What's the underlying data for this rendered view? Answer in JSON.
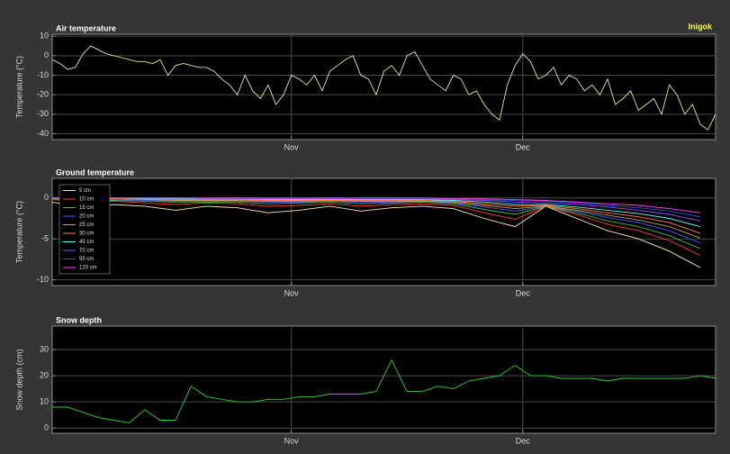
{
  "chart_data": [
    {
      "type": "line",
      "title": "Air temperature",
      "annotation": "Inigok",
      "ylabel": "Temperature (°C)",
      "x": [
        0,
        1,
        2,
        3,
        4,
        5,
        6,
        7,
        8,
        9,
        10,
        11,
        12,
        13,
        14,
        15,
        16,
        17,
        18,
        19,
        20,
        21,
        22,
        23,
        24,
        25,
        26,
        27,
        28,
        29,
        30,
        31,
        32,
        33,
        34,
        35,
        36,
        37,
        38,
        39,
        40,
        41,
        42,
        43,
        44,
        45,
        46,
        47,
        48,
        49,
        50,
        51,
        52,
        53,
        54,
        55,
        56,
        57,
        58,
        59,
        60,
        61,
        62,
        63,
        64,
        65,
        66,
        67,
        68,
        69,
        70,
        71,
        72,
        73,
        74,
        75,
        76,
        77,
        78,
        79,
        80,
        81,
        82,
        83,
        84,
        85,
        86
      ],
      "series": [
        {
          "color": "#e8e890",
          "values": [
            -2,
            -4,
            -7,
            -6,
            1,
            5,
            3,
            1,
            0,
            -1,
            -2,
            -3,
            -3,
            -4,
            -2,
            -10,
            -5,
            -4,
            -5,
            -6,
            -6,
            -8,
            -12,
            -15,
            -20,
            -10,
            -18,
            -22,
            -15,
            -25,
            -20,
            -10,
            -12,
            -15,
            -10,
            -18,
            -8,
            -5,
            -2,
            0,
            -10,
            -12,
            -20,
            -8,
            -5,
            -10,
            0,
            2,
            -5,
            -12,
            -15,
            -18,
            -10,
            -12,
            -20,
            -18,
            -25,
            -30,
            -33,
            -15,
            -5,
            1,
            -3,
            -12,
            -10,
            -6,
            -15,
            -10,
            -12,
            -18,
            -15,
            -20,
            -12,
            -25,
            -22,
            -18,
            -28,
            -25,
            -22,
            -30,
            -15,
            -20,
            -30,
            -25,
            -35,
            -38,
            -30
          ]
        }
      ],
      "xlim": [
        0,
        86
      ],
      "xticks": [
        {
          "value": 31,
          "label": "Nov"
        },
        {
          "value": 61,
          "label": "Dec"
        }
      ],
      "ylim": [
        -43,
        11
      ],
      "yticks": [
        -40,
        -30,
        -20,
        -10,
        0,
        10
      ],
      "grid": true
    },
    {
      "type": "line",
      "title": "Ground temperature",
      "ylabel": "Temperature (°C)",
      "legend": "upper left",
      "x": [
        0,
        4,
        8,
        12,
        16,
        20,
        24,
        28,
        32,
        36,
        40,
        44,
        48,
        52,
        56,
        60,
        64,
        68,
        72,
        76,
        80,
        84
      ],
      "series": [
        {
          "name": "5 cm",
          "color": "#ffe8b8",
          "values": [
            -0.5,
            -1.2,
            -0.8,
            -1,
            -1.5,
            -1,
            -1.2,
            -1.8,
            -1.5,
            -1,
            -1.6,
            -1.2,
            -1,
            -1.3,
            -2.5,
            -3.5,
            -1,
            -2.5,
            -4,
            -5,
            -6.5,
            -8.5
          ]
        },
        {
          "name": "10 cm",
          "color": "#ff4040",
          "values": [
            -0.2,
            -0.5,
            -0.4,
            -0.6,
            -0.8,
            -0.6,
            -0.7,
            -1,
            -0.9,
            -0.7,
            -1,
            -0.8,
            -0.7,
            -0.9,
            -1.8,
            -2.6,
            -1,
            -2,
            -3.2,
            -4,
            -5.2,
            -7
          ]
        },
        {
          "name": "15 cm",
          "color": "#40c040",
          "values": [
            -0.1,
            -0.3,
            -0.3,
            -0.4,
            -0.5,
            -0.5,
            -0.5,
            -0.7,
            -0.6,
            -0.5,
            -0.7,
            -0.6,
            -0.5,
            -0.7,
            -1.4,
            -2,
            -1,
            -1.8,
            -2.8,
            -3.5,
            -4.6,
            -6.2
          ]
        },
        {
          "name": "20 cm",
          "color": "#4060ff",
          "values": [
            0,
            -0.2,
            -0.2,
            -0.3,
            -0.4,
            -0.4,
            -0.4,
            -0.5,
            -0.5,
            -0.4,
            -0.5,
            -0.5,
            -0.4,
            -0.6,
            -1.1,
            -1.6,
            -1,
            -1.6,
            -2.4,
            -3,
            -4,
            -5.5
          ]
        },
        {
          "name": "25 cm",
          "color": "#c8a060",
          "values": [
            0,
            -0.1,
            -0.1,
            -0.2,
            -0.3,
            -0.3,
            -0.3,
            -0.4,
            -0.4,
            -0.3,
            -0.4,
            -0.4,
            -0.4,
            -0.5,
            -0.9,
            -1.3,
            -1,
            -1.5,
            -2.1,
            -2.7,
            -3.5,
            -4.9
          ]
        },
        {
          "name": "30 cm",
          "color": "#ff8040",
          "values": [
            0,
            -0.1,
            -0.1,
            -0.1,
            -0.2,
            -0.2,
            -0.2,
            -0.3,
            -0.3,
            -0.3,
            -0.3,
            -0.3,
            -0.3,
            -0.4,
            -0.7,
            -1,
            -0.9,
            -1.3,
            -1.8,
            -2.3,
            -3,
            -4.3
          ]
        },
        {
          "name": "45 cm",
          "color": "#60ffff",
          "values": [
            0,
            0,
            0,
            -0.1,
            -0.1,
            -0.1,
            -0.1,
            -0.2,
            -0.2,
            -0.2,
            -0.2,
            -0.2,
            -0.2,
            -0.3,
            -0.5,
            -0.8,
            -0.8,
            -1.1,
            -1.5,
            -1.9,
            -2.5,
            -3.5
          ]
        },
        {
          "name": "70 cm",
          "color": "#9050ff",
          "values": [
            0,
            0,
            0,
            0,
            0,
            -0.1,
            -0.1,
            -0.1,
            -0.1,
            -0.1,
            -0.1,
            -0.1,
            -0.1,
            -0.2,
            -0.3,
            -0.5,
            -0.6,
            -0.8,
            -1.1,
            -1.5,
            -2,
            -2.8
          ]
        },
        {
          "name": "95 cm",
          "color": "#3050c0",
          "values": [
            0,
            0,
            0,
            0,
            0,
            0,
            0,
            0,
            0,
            0,
            -0.1,
            -0.1,
            -0.1,
            -0.1,
            -0.2,
            -0.3,
            -0.4,
            -0.6,
            -0.9,
            -1.2,
            -1.6,
            -2.3
          ]
        },
        {
          "name": "120 cm",
          "color": "#ff40ff",
          "values": [
            0,
            0,
            0,
            0,
            0,
            0,
            0,
            0,
            0,
            0,
            0,
            0,
            0,
            -0.1,
            -0.1,
            -0.2,
            -0.3,
            -0.5,
            -0.7,
            -0.9,
            -1.3,
            -1.8
          ]
        }
      ],
      "xlim": [
        0,
        86
      ],
      "xticks": [
        {
          "value": 31,
          "label": "Nov"
        },
        {
          "value": 61,
          "label": "Dec"
        }
      ],
      "ylim": [
        -10.7,
        2.4
      ],
      "yticks": [
        -10,
        -5,
        0
      ],
      "grid": true
    },
    {
      "type": "line",
      "title": "Snow depth",
      "ylabel": "Snow depth (cm)",
      "x": [
        0,
        2,
        4,
        6,
        8,
        10,
        12,
        14,
        16,
        18,
        20,
        22,
        24,
        26,
        28,
        30,
        32,
        34,
        36,
        38,
        40,
        42,
        44,
        46,
        48,
        50,
        52,
        54,
        56,
        58,
        60,
        62,
        64,
        66,
        68,
        70,
        72,
        74,
        76,
        78,
        80,
        82,
        84,
        86
      ],
      "series": [
        {
          "color": "#30d030",
          "values": [
            8,
            8,
            6,
            4,
            3,
            2,
            7,
            3,
            3,
            16,
            12,
            11,
            10,
            10,
            11,
            11,
            12,
            12,
            13,
            13,
            13,
            14,
            26,
            14,
            14,
            16,
            15,
            18,
            19,
            20,
            24,
            20,
            20,
            19,
            19,
            19,
            18,
            19,
            19,
            19,
            19,
            19,
            20,
            19
          ]
        }
      ],
      "xlim": [
        0,
        86
      ],
      "xticks": [
        {
          "value": 31,
          "label": "Nov"
        },
        {
          "value": 61,
          "label": "Dec"
        }
      ],
      "ylim": [
        -2,
        39
      ],
      "yticks": [
        0,
        10,
        20,
        30
      ],
      "grid": true
    }
  ]
}
